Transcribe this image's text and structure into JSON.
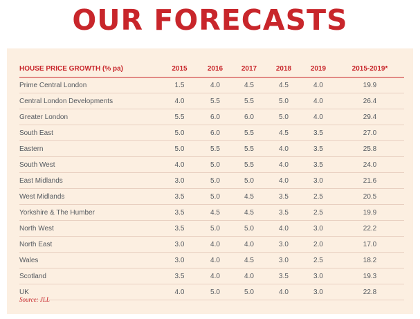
{
  "title": "OUR FORECASTS",
  "table": {
    "headers": [
      "HOUSE PRICE GROWTH (% pa)",
      "2015",
      "2016",
      "2017",
      "2018",
      "2019",
      "2015-2019*"
    ],
    "rows": [
      [
        "Prime Central London",
        "1.5",
        "4.0",
        "4.5",
        "4.5",
        "4.0",
        "19.9"
      ],
      [
        "Central London Developments",
        "4.0",
        "5.5",
        "5.5",
        "5.0",
        "4.0",
        "26.4"
      ],
      [
        "Greater London",
        "5.5",
        "6.0",
        "6.0",
        "5.0",
        "4.0",
        "29.4"
      ],
      [
        "South East",
        "5.0",
        "6.0",
        "5.5",
        "4.5",
        "3.5",
        "27.0"
      ],
      [
        "Eastern",
        "5.0",
        "5.5",
        "5.5",
        "4.0",
        "3.5",
        "25.8"
      ],
      [
        "South West",
        "4.0",
        "5.0",
        "5.5",
        "4.0",
        "3.5",
        "24.0"
      ],
      [
        "East Midlands",
        "3.0",
        "5.0",
        "5.0",
        "4.0",
        "3.0",
        "21.6"
      ],
      [
        "West Midlands",
        "3.5",
        "5.0",
        "4.5",
        "3.5",
        "2.5",
        "20.5"
      ],
      [
        "Yorkshire & The Humber",
        "3.5",
        "4.5",
        "4.5",
        "3.5",
        "2.5",
        "19.9"
      ],
      [
        "North West",
        "3.5",
        "5.0",
        "5.0",
        "4.0",
        "3.0",
        "22.2"
      ],
      [
        "North East",
        "3.0",
        "4.0",
        "4.0",
        "3.0",
        "2.0",
        "17.0"
      ],
      [
        "Wales",
        "3.0",
        "4.0",
        "4.5",
        "3.0",
        "2.5",
        "18.2"
      ],
      [
        "Scotland",
        "3.5",
        "4.0",
        "4.0",
        "3.5",
        "3.0",
        "19.3"
      ],
      [
        "UK",
        "4.0",
        "5.0",
        "5.0",
        "4.0",
        "3.0",
        "22.8"
      ]
    ]
  },
  "source": "Source: JLL",
  "colors": {
    "accent": "#c8262b",
    "panel_background": "#fcefe1",
    "body_text": "#555a60",
    "row_divider": "#e8cfc0"
  }
}
